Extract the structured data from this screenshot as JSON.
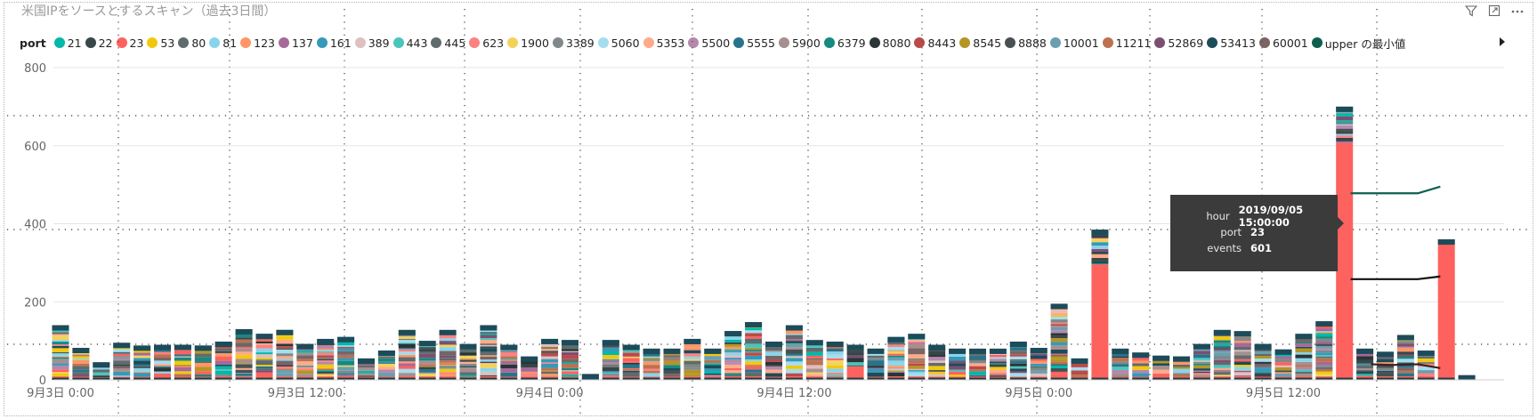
{
  "visual_title": "米国IPをソースとするスキャン（過去3日間）",
  "header_icons": [
    "filter-icon",
    "focus-mode-icon",
    "more-options-icon"
  ],
  "legend": {
    "title": "port",
    "next_icon": "chevron-right-icon",
    "items": [
      {
        "label": "21",
        "color": "#01B8AA"
      },
      {
        "label": "22",
        "color": "#374649"
      },
      {
        "label": "23",
        "color": "#FD625E"
      },
      {
        "label": "53",
        "color": "#F2C80F"
      },
      {
        "label": "80",
        "color": "#5F6B6D"
      },
      {
        "label": "81",
        "color": "#8AD4EB"
      },
      {
        "label": "123",
        "color": "#FE9666"
      },
      {
        "label": "137",
        "color": "#A66999"
      },
      {
        "label": "161",
        "color": "#3599B8"
      },
      {
        "label": "389",
        "color": "#DFBFBF"
      },
      {
        "label": "443",
        "color": "#4AC5BB"
      },
      {
        "label": "445",
        "color": "#5F6B6D"
      },
      {
        "label": "623",
        "color": "#FB8281"
      },
      {
        "label": "1900",
        "color": "#F4D25A"
      },
      {
        "label": "3389",
        "color": "#7F898A"
      },
      {
        "label": "5060",
        "color": "#A4DDEE"
      },
      {
        "label": "5353",
        "color": "#FDAB89"
      },
      {
        "label": "5500",
        "color": "#B687AC"
      },
      {
        "label": "5555",
        "color": "#28738A"
      },
      {
        "label": "5900",
        "color": "#A78F8F"
      },
      {
        "label": "6379",
        "color": "#168980"
      },
      {
        "label": "8080",
        "color": "#293537"
      },
      {
        "label": "8443",
        "color": "#BB4A4A"
      },
      {
        "label": "8545",
        "color": "#B59525"
      },
      {
        "label": "8888",
        "color": "#475052"
      },
      {
        "label": "10001",
        "color": "#6A9FB0"
      },
      {
        "label": "11211",
        "color": "#BD7150"
      },
      {
        "label": "52869",
        "color": "#7B4F71"
      },
      {
        "label": "53413",
        "color": "#1C4B5A"
      },
      {
        "label": "60001",
        "color": "#7A6464"
      },
      {
        "label": "upper の最小値",
        "color": "#0E5E4E"
      }
    ]
  },
  "tooltip": {
    "rows": [
      {
        "key": "hour",
        "value": "2019/09/05 15:00:00"
      },
      {
        "key": "port",
        "value": "23"
      },
      {
        "key": "events",
        "value": "601"
      }
    ]
  },
  "chart_data": {
    "type": "bar",
    "stacked": true,
    "y_ticks": [
      0,
      200,
      400,
      600,
      800
    ],
    "ylim": [
      0,
      800
    ],
    "x_tick_labels": [
      "9月3日 0:00",
      "9月3日 12:00",
      "9月4日 0:00",
      "9月4日 12:00",
      "9月5日 0:00",
      "9月5日 12:00"
    ],
    "x_tick_hours": [
      0,
      12,
      24,
      36,
      48,
      60
    ],
    "gridlines": true,
    "legend_position": "top",
    "hours": [
      "9/3 0:00",
      "9/3 1:00",
      "9/3 2:00",
      "9/3 3:00",
      "9/3 4:00",
      "9/3 5:00",
      "9/3 6:00",
      "9/3 7:00",
      "9/3 8:00",
      "9/3 9:00",
      "9/3 10:00",
      "9/3 11:00",
      "9/3 12:00",
      "9/3 13:00",
      "9/3 14:00",
      "9/3 15:00",
      "9/3 16:00",
      "9/3 17:00",
      "9/3 18:00",
      "9/3 19:00",
      "9/3 20:00",
      "9/3 21:00",
      "9/3 22:00",
      "9/3 23:00",
      "9/4 0:00",
      "9/4 1:00",
      "9/4 2:00",
      "9/4 3:00",
      "9/4 4:00",
      "9/4 5:00",
      "9/4 6:00",
      "9/4 7:00",
      "9/4 8:00",
      "9/4 9:00",
      "9/4 10:00",
      "9/4 11:00",
      "9/4 12:00",
      "9/4 13:00",
      "9/4 14:00",
      "9/4 15:00",
      "9/4 16:00",
      "9/4 17:00",
      "9/4 18:00",
      "9/4 19:00",
      "9/4 20:00",
      "9/4 21:00",
      "9/4 22:00",
      "9/4 23:00",
      "9/5 0:00",
      "9/5 1:00",
      "9/5 2:00",
      "9/5 3:00",
      "9/5 4:00",
      "9/5 5:00",
      "9/5 6:00",
      "9/5 7:00",
      "9/5 8:00",
      "9/5 9:00",
      "9/5 10:00",
      "9/5 11:00",
      "9/5 12:00",
      "9/5 13:00",
      "9/5 14:00",
      "9/5 15:00",
      "9/5 16:00",
      "9/5 17:00",
      "9/5 18:00",
      "9/5 19:00",
      "9/5 20:00",
      "9/5 21:00"
    ],
    "totals": [
      140,
      82,
      45,
      95,
      88,
      90,
      90,
      88,
      98,
      130,
      118,
      128,
      92,
      105,
      110,
      55,
      75,
      128,
      100,
      128,
      92,
      140,
      90,
      60,
      105,
      102,
      15,
      102,
      90,
      80,
      80,
      105,
      80,
      125,
      148,
      98,
      140,
      102,
      98,
      90,
      80,
      110,
      118,
      90,
      80,
      80,
      80,
      98,
      82,
      195,
      55,
      385,
      80,
      70,
      62,
      60,
      92,
      128,
      125,
      92,
      78,
      118,
      150,
      700,
      80,
      72,
      115,
      75,
      360,
      12
    ],
    "port23_values": [
      3,
      2,
      1,
      2,
      2,
      2,
      2,
      2,
      3,
      3,
      3,
      3,
      2,
      3,
      3,
      2,
      2,
      3,
      3,
      3,
      2,
      3,
      2,
      2,
      2,
      2,
      0,
      3,
      2,
      2,
      2,
      3,
      2,
      3,
      3,
      2,
      3,
      3,
      2,
      28,
      2,
      3,
      3,
      2,
      2,
      2,
      2,
      2,
      2,
      8,
      2,
      290,
      2,
      2,
      2,
      2,
      2,
      3,
      3,
      2,
      2,
      3,
      3,
      601,
      5,
      3,
      3,
      4,
      345,
      10
    ],
    "upper_min_series": [
      {
        "hours": [
          63.3,
          65.3,
          66.6,
          67.7
        ],
        "values": [
          478,
          478,
          478,
          495
        ],
        "color": "#0E5E4E"
      },
      {
        "hours": [
          63.3,
          65.3,
          66.6,
          67.7
        ],
        "values": [
          258,
          258,
          258,
          265
        ],
        "color": "#111111"
      },
      {
        "hours": [
          64.3,
          65.3,
          66.6,
          67.7
        ],
        "values": [
          40,
          38,
          40,
          30
        ],
        "color": "#3a2020"
      }
    ]
  }
}
